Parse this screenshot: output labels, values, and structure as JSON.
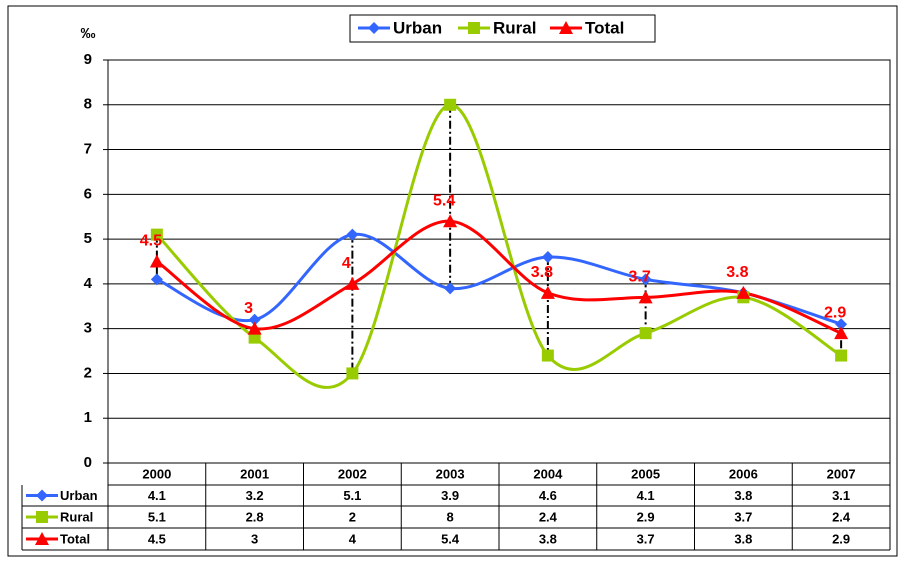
{
  "chart_data": {
    "type": "line",
    "y_label": "‰",
    "categories": [
      "2000",
      "2001",
      "2002",
      "2003",
      "2004",
      "2005",
      "2006",
      "2007"
    ],
    "series": [
      {
        "name": "Urban",
        "color": "#3366ff",
        "marker": "diamond",
        "values": [
          4.1,
          3.2,
          5.1,
          3.9,
          4.6,
          4.1,
          3.8,
          3.1
        ]
      },
      {
        "name": "Rural",
        "color": "#99cc00",
        "marker": "square",
        "values": [
          5.1,
          2.8,
          2,
          8,
          2.4,
          2.9,
          3.7,
          2.4
        ]
      },
      {
        "name": "Total",
        "color": "#ff0000",
        "marker": "triangle",
        "values": [
          4.5,
          3,
          4,
          5.4,
          3.8,
          3.7,
          3.8,
          2.9
        ],
        "data_labels": true
      }
    ],
    "ylim": [
      0,
      9
    ],
    "yticks": [
      0,
      1,
      2,
      3,
      4,
      5,
      6,
      7,
      8,
      9
    ],
    "grid": true,
    "smooth": true,
    "high_low_lines": true,
    "legend": "top",
    "data_table": true
  }
}
